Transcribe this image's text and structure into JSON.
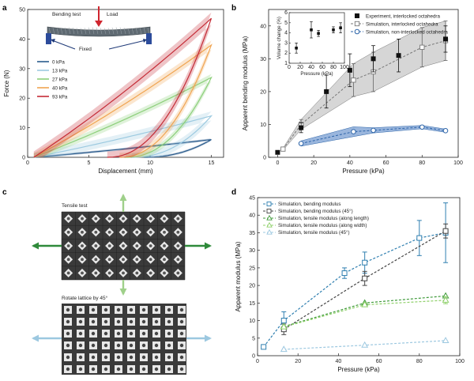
{
  "panel_labels": {
    "a": "a",
    "b": "b",
    "c": "c",
    "d": "d"
  },
  "panel_a": {
    "inset": {
      "test": "Bending test",
      "load": "Load",
      "fixed": "Fixed"
    }
  },
  "panel_c": {
    "tensile_label": "Tensile test",
    "rotate_label": "Rotate lattice by 45°"
  },
  "colors": {
    "a_0": "#2a5b8c",
    "a_13": "#9ccae0",
    "a_27": "#8ccf7a",
    "a_40": "#f0a552",
    "a_93": "#c42b36",
    "b_exp": "#111111",
    "b_sim": "#777777",
    "b_sim_non": "#2b63a8",
    "d_bend": "#2f7fb0",
    "d_bend45": "#444444",
    "d_len": "#3f9a3a",
    "d_wid": "#8fd06a",
    "d_45": "#9cc8e0"
  },
  "chart_data": [
    {
      "type": "line",
      "panel": "a",
      "xlabel": "Displacement (mm)",
      "ylabel": "Force (N)",
      "xlim": [
        0,
        16
      ],
      "ylim": [
        0,
        50
      ],
      "xticks": [
        "0",
        "5",
        "10",
        "15"
      ],
      "yticks": [
        "0",
        "10",
        "20",
        "30",
        "40",
        "50"
      ],
      "legend_position": "left",
      "series": [
        {
          "name": "0 kPa",
          "color_key": "a_0",
          "peak": 6,
          "unload_x": 9.5,
          "band": 0.4
        },
        {
          "name": "13 kPa",
          "color_key": "a_13",
          "peak": 14,
          "unload_x": 8.5,
          "band": 1.5
        },
        {
          "name": "27 kPa",
          "color_key": "a_27",
          "peak": 27,
          "unload_x": 8,
          "band": 1.2
        },
        {
          "name": "40 kPa",
          "color_key": "a_40",
          "peak": 38,
          "unload_x": 7.5,
          "band": 1.5
        },
        {
          "name": "93 kPa",
          "color_key": "a_93",
          "peak": 47,
          "unload_x": 6.5,
          "band": 2
        }
      ]
    },
    {
      "type": "scatter",
      "panel": "b",
      "xlabel": "Pressure (kPa)",
      "ylabel": "Apparent bending modulus (MPa)",
      "xlim": [
        -5,
        100
      ],
      "ylim": [
        0,
        45
      ],
      "xticks": [
        "0",
        "20",
        "40",
        "60",
        "80",
        "100"
      ],
      "yticks": [
        "0",
        "10",
        "20",
        "30",
        "40"
      ],
      "legend_position": "top-right",
      "series": [
        {
          "name": "Experiment, interlocked octahedra",
          "color_key": "b_exp",
          "x": [
            0,
            13,
            27,
            40,
            53,
            67,
            93
          ],
          "y": [
            1.5,
            9,
            20,
            26.5,
            30,
            31,
            36
          ],
          "err": [
            0.5,
            1.5,
            5,
            5,
            4,
            5,
            4
          ]
        },
        {
          "name": "Simulation, interlocked octahedra",
          "color_key": "b_sim",
          "x": [
            3,
            13,
            42,
            53,
            80,
            93
          ],
          "y": [
            2.5,
            10,
            23.5,
            26,
            33.5,
            35.5
          ],
          "err": [
            0.3,
            1.5,
            5,
            6,
            6,
            6
          ]
        },
        {
          "name": "Simulation, non-interlocked octahedra",
          "color_key": "b_sim_non",
          "x": [
            13,
            42,
            53,
            80,
            93
          ],
          "y": [
            4.2,
            7.8,
            8.2,
            9.2,
            8.1
          ],
          "err": [
            0.8,
            1.5,
            0.8,
            0.5,
            0.5
          ]
        }
      ],
      "inset": {
        "xlabel": "Pressure (kPa)",
        "ylabel": "Volume change (%)",
        "xlim": [
          0,
          100
        ],
        "ylim": [
          1,
          6
        ],
        "xticks": [
          "0",
          "20",
          "40",
          "60",
          "80",
          "100"
        ],
        "yticks": [
          "1",
          "2",
          "3",
          "4",
          "5",
          "6"
        ],
        "x": [
          13,
          40,
          53,
          80,
          93
        ],
        "y": [
          2.5,
          4.3,
          3.95,
          4.3,
          4.5
        ],
        "err": [
          0.5,
          0.8,
          0.3,
          0.3,
          0.5
        ]
      }
    },
    {
      "type": "line",
      "panel": "d",
      "xlabel": "Pressure (kPa)",
      "ylabel": "Apparent modulus (MPa)",
      "xlim": [
        0,
        100
      ],
      "ylim": [
        0,
        45
      ],
      "xticks": [
        "0",
        "20",
        "40",
        "60",
        "80",
        "100"
      ],
      "yticks": [
        "0",
        "5",
        "10",
        "15",
        "20",
        "25",
        "30",
        "35",
        "40",
        "45"
      ],
      "legend_position": "top-left",
      "series": [
        {
          "name": "Simulation, bending modulus",
          "color_key": "d_bend",
          "marker": "square",
          "x": [
            3,
            13,
            43,
            53,
            80,
            93
          ],
          "y": [
            2.5,
            10,
            23.5,
            26.5,
            33.5,
            35
          ],
          "err": [
            0.3,
            2.5,
            1.5,
            3,
            5,
            8.5
          ]
        },
        {
          "name": "Simulation, bending modulus (45°)",
          "color_key": "d_bend45",
          "marker": "square",
          "x": [
            13,
            53,
            93
          ],
          "y": [
            7.5,
            22,
            35.5
          ],
          "err": [
            1.5,
            2,
            2
          ]
        },
        {
          "name": "Simulation, tensile modulus (along length)",
          "color_key": "d_len",
          "marker": "triangle",
          "x": [
            13,
            53,
            93
          ],
          "y": [
            8.3,
            15,
            17
          ],
          "err": [
            0,
            0,
            0
          ]
        },
        {
          "name": "Simulation, tensile modulus (along width)",
          "color_key": "d_wid",
          "marker": "triangle",
          "x": [
            13,
            53,
            93
          ],
          "y": [
            8.2,
            14.5,
            15.8
          ],
          "err": [
            0,
            0.5,
            1
          ]
        },
        {
          "name": "Simulation, tensile modulus (45°)",
          "color_key": "d_45",
          "marker": "triangle",
          "x": [
            13,
            53,
            93
          ],
          "y": [
            1.8,
            3,
            4.3
          ],
          "err": [
            0,
            0,
            0
          ]
        }
      ]
    }
  ]
}
